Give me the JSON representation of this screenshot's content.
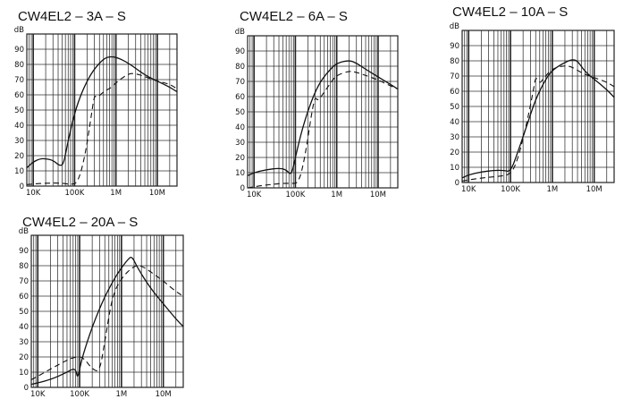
{
  "chart_data": [
    {
      "type": "line",
      "title": "CW4EL2 – 3A – S",
      "x_scale": "log",
      "xlim": [
        7000,
        30000000
      ],
      "ylim": [
        0,
        100
      ],
      "x_tick_labels": [
        {
          "v": 10000,
          "t": "10K"
        },
        {
          "v": 100000,
          "t": "100K"
        },
        {
          "v": 1000000,
          "t": "1M"
        },
        {
          "v": 10000000,
          "t": "10M"
        }
      ],
      "y_axis_unit": "dB",
      "y_tick_labels": [
        "0",
        "10",
        "20",
        "30",
        "40",
        "50",
        "60",
        "70",
        "80",
        "90"
      ],
      "grid": true,
      "series": [
        {
          "style": "solid",
          "points": [
            [
              7000,
              12
            ],
            [
              10000,
              16
            ],
            [
              15000,
              18
            ],
            [
              20000,
              18
            ],
            [
              30000,
              17
            ],
            [
              45000,
              13
            ],
            [
              55000,
              15
            ],
            [
              70000,
              30
            ],
            [
              100000,
              48
            ],
            [
              150000,
              62
            ],
            [
              250000,
              74
            ],
            [
              400000,
              81
            ],
            [
              600000,
              85
            ],
            [
              1000000,
              85
            ],
            [
              2000000,
              81
            ],
            [
              5000000,
              73
            ],
            [
              10000000,
              69
            ],
            [
              20000000,
              65
            ],
            [
              30000000,
              62
            ]
          ]
        },
        {
          "style": "dashed",
          "points": [
            [
              7000,
              1
            ],
            [
              20000,
              2
            ],
            [
              50000,
              2
            ],
            [
              80000,
              1
            ],
            [
              120000,
              2
            ],
            [
              180000,
              20
            ],
            [
              250000,
              45
            ],
            [
              300000,
              60
            ],
            [
              350000,
              58
            ],
            [
              500000,
              62
            ],
            [
              800000,
              65
            ],
            [
              1000000,
              68
            ],
            [
              2000000,
              74
            ],
            [
              3000000,
              74
            ],
            [
              5000000,
              72
            ],
            [
              10000000,
              69
            ],
            [
              20000000,
              67
            ],
            [
              30000000,
              64
            ]
          ]
        }
      ]
    },
    {
      "type": "line",
      "title": "CW4EL2 – 6A – S",
      "x_scale": "log",
      "xlim": [
        7000,
        30000000
      ],
      "ylim": [
        0,
        100
      ],
      "x_tick_labels": [
        {
          "v": 10000,
          "t": "10K"
        },
        {
          "v": 100000,
          "t": "100K"
        },
        {
          "v": 1000000,
          "t": "1M"
        },
        {
          "v": 10000000,
          "t": "10M"
        }
      ],
      "y_axis_unit": "dB",
      "y_tick_labels": [
        "0",
        "10",
        "20",
        "30",
        "40",
        "50",
        "60",
        "70",
        "80",
        "90"
      ],
      "grid": true,
      "series": [
        {
          "style": "solid",
          "points": [
            [
              7000,
              8
            ],
            [
              10000,
              10
            ],
            [
              20000,
              12
            ],
            [
              40000,
              13
            ],
            [
              60000,
              12
            ],
            [
              80000,
              8
            ],
            [
              100000,
              20
            ],
            [
              150000,
              40
            ],
            [
              250000,
              58
            ],
            [
              400000,
              70
            ],
            [
              700000,
              78
            ],
            [
              1000000,
              82
            ],
            [
              2000000,
              84
            ],
            [
              3000000,
              82
            ],
            [
              5000000,
              78
            ],
            [
              10000000,
              73
            ],
            [
              20000000,
              68
            ],
            [
              30000000,
              65
            ]
          ]
        },
        {
          "style": "dashed",
          "points": [
            [
              7000,
              0
            ],
            [
              20000,
              2
            ],
            [
              50000,
              3
            ],
            [
              80000,
              3
            ],
            [
              120000,
              3
            ],
            [
              170000,
              20
            ],
            [
              250000,
              50
            ],
            [
              300000,
              60
            ],
            [
              350000,
              57
            ],
            [
              500000,
              63
            ],
            [
              800000,
              71
            ],
            [
              1000000,
              74
            ],
            [
              2000000,
              77
            ],
            [
              3000000,
              76
            ],
            [
              5000000,
              74
            ],
            [
              10000000,
              71
            ],
            [
              20000000,
              67
            ],
            [
              30000000,
              65
            ]
          ]
        }
      ]
    },
    {
      "type": "line",
      "title": "CW4EL2 – 10A – S",
      "x_scale": "log",
      "xlim": [
        7000,
        30000000
      ],
      "ylim": [
        0,
        100
      ],
      "x_tick_labels": [
        {
          "v": 10000,
          "t": "10K"
        },
        {
          "v": 100000,
          "t": "100K"
        },
        {
          "v": 1000000,
          "t": "1M"
        },
        {
          "v": 10000000,
          "t": "10M"
        }
      ],
      "y_axis_unit": "dB",
      "y_tick_labels": [
        "0",
        "10",
        "20",
        "30",
        "40",
        "50",
        "60",
        "70",
        "80",
        "90"
      ],
      "grid": true,
      "series": [
        {
          "style": "solid",
          "points": [
            [
              7000,
              3
            ],
            [
              10000,
              5
            ],
            [
              20000,
              7
            ],
            [
              40000,
              8
            ],
            [
              70000,
              8
            ],
            [
              100000,
              7
            ],
            [
              150000,
              20
            ],
            [
              250000,
              38
            ],
            [
              400000,
              55
            ],
            [
              700000,
              68
            ],
            [
              1000000,
              74
            ],
            [
              2000000,
              79
            ],
            [
              3000000,
              81
            ],
            [
              4000000,
              80
            ],
            [
              6000000,
              73
            ],
            [
              10000000,
              68
            ],
            [
              20000000,
              61
            ],
            [
              30000000,
              56
            ]
          ]
        },
        {
          "style": "dashed",
          "points": [
            [
              7000,
              1
            ],
            [
              20000,
              3
            ],
            [
              50000,
              4
            ],
            [
              100000,
              5
            ],
            [
              150000,
              15
            ],
            [
              250000,
              40
            ],
            [
              350000,
              60
            ],
            [
              400000,
              70
            ],
            [
              500000,
              65
            ],
            [
              600000,
              68
            ],
            [
              1000000,
              75
            ],
            [
              2000000,
              77
            ],
            [
              3000000,
              76
            ],
            [
              5000000,
              72
            ],
            [
              10000000,
              69
            ],
            [
              20000000,
              66
            ],
            [
              30000000,
              63
            ]
          ]
        }
      ]
    },
    {
      "type": "line",
      "title": "CW4EL2 – 20A – S",
      "x_scale": "log",
      "xlim": [
        7000,
        30000000
      ],
      "ylim": [
        0,
        100
      ],
      "x_tick_labels": [
        {
          "v": 10000,
          "t": "10K"
        },
        {
          "v": 100000,
          "t": "100K"
        },
        {
          "v": 1000000,
          "t": "1M"
        },
        {
          "v": 10000000,
          "t": "10M"
        }
      ],
      "y_axis_unit": "dB",
      "y_tick_labels": [
        "0",
        "10",
        "20",
        "30",
        "40",
        "50",
        "60",
        "70",
        "80",
        "90"
      ],
      "grid": true,
      "series": [
        {
          "style": "solid",
          "points": [
            [
              7000,
              2
            ],
            [
              20000,
              5
            ],
            [
              50000,
              10
            ],
            [
              80000,
              13
            ],
            [
              90000,
              5
            ],
            [
              110000,
              18
            ],
            [
              200000,
              40
            ],
            [
              400000,
              60
            ],
            [
              800000,
              75
            ],
            [
              1500000,
              85
            ],
            [
              1800000,
              86
            ],
            [
              2500000,
              78
            ],
            [
              5000000,
              65
            ],
            [
              10000000,
              55
            ],
            [
              20000000,
              45
            ],
            [
              30000000,
              40
            ]
          ]
        },
        {
          "style": "dashed",
          "points": [
            [
              7000,
              5
            ],
            [
              20000,
              12
            ],
            [
              50000,
              18
            ],
            [
              80000,
              20
            ],
            [
              120000,
              20
            ],
            [
              200000,
              12
            ],
            [
              300000,
              10
            ],
            [
              400000,
              30
            ],
            [
              600000,
              60
            ],
            [
              1000000,
              72
            ],
            [
              2000000,
              80
            ],
            [
              3000000,
              80
            ],
            [
              5000000,
              76
            ],
            [
              10000000,
              70
            ],
            [
              20000000,
              63
            ],
            [
              30000000,
              60
            ]
          ]
        }
      ]
    }
  ]
}
